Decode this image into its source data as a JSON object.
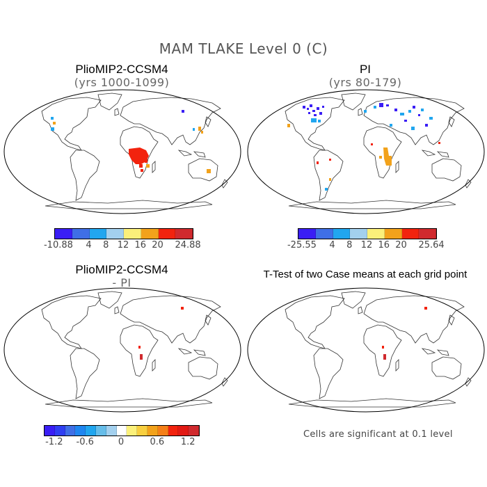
{
  "title": "MAM TLAKE Level 0 (C)",
  "panels": {
    "top_left": {
      "title": "PlioMIP2-CCSM4",
      "subtitle": "(yrs 1000-1099)"
    },
    "top_right": {
      "title": "PI",
      "subtitle": "(yrs 80-179)"
    },
    "bottom_left": {
      "title": "PlioMIP2-CCSM4",
      "subtitle": "- PI"
    },
    "bottom_right": {
      "title": "T-Test of two Case means at each grid point"
    }
  },
  "colorbars": {
    "top_left": {
      "colors": [
        "#3a1ef5",
        "#3f6fe6",
        "#21a6ef",
        "#a3d0ee",
        "#fbf07a",
        "#f2a21b",
        "#f2230e",
        "#d02a2e"
      ],
      "labels": [
        "-10.88",
        "4",
        "8",
        "12",
        "16",
        "20",
        "24.88"
      ]
    },
    "top_right": {
      "colors": [
        "#3a1ef5",
        "#3f6fe6",
        "#21a6ef",
        "#a3d0ee",
        "#fbf07a",
        "#f2a21b",
        "#f2230e",
        "#d02a2e"
      ],
      "labels": [
        "-25.55",
        "4",
        "8",
        "12",
        "16",
        "20",
        "25.64"
      ]
    },
    "bottom_left": {
      "colors": [
        "#3a1ef5",
        "#2f3ff2",
        "#3f6fe6",
        "#1f86f0",
        "#21a6ef",
        "#66bde9",
        "#a3d0ee",
        "#ffffff",
        "#fbf07a",
        "#f8cf3f",
        "#f2a21b",
        "#f57f18",
        "#f2230e",
        "#e21a14",
        "#d02a2e"
      ],
      "labels": [
        "-1.2",
        "-0.6",
        "0",
        "0.6",
        "1.2"
      ]
    }
  },
  "significance_note": "Cells are significant at 0.1 level",
  "legend_colors": {
    "map_outline": "#000000",
    "coast": "#333333"
  }
}
